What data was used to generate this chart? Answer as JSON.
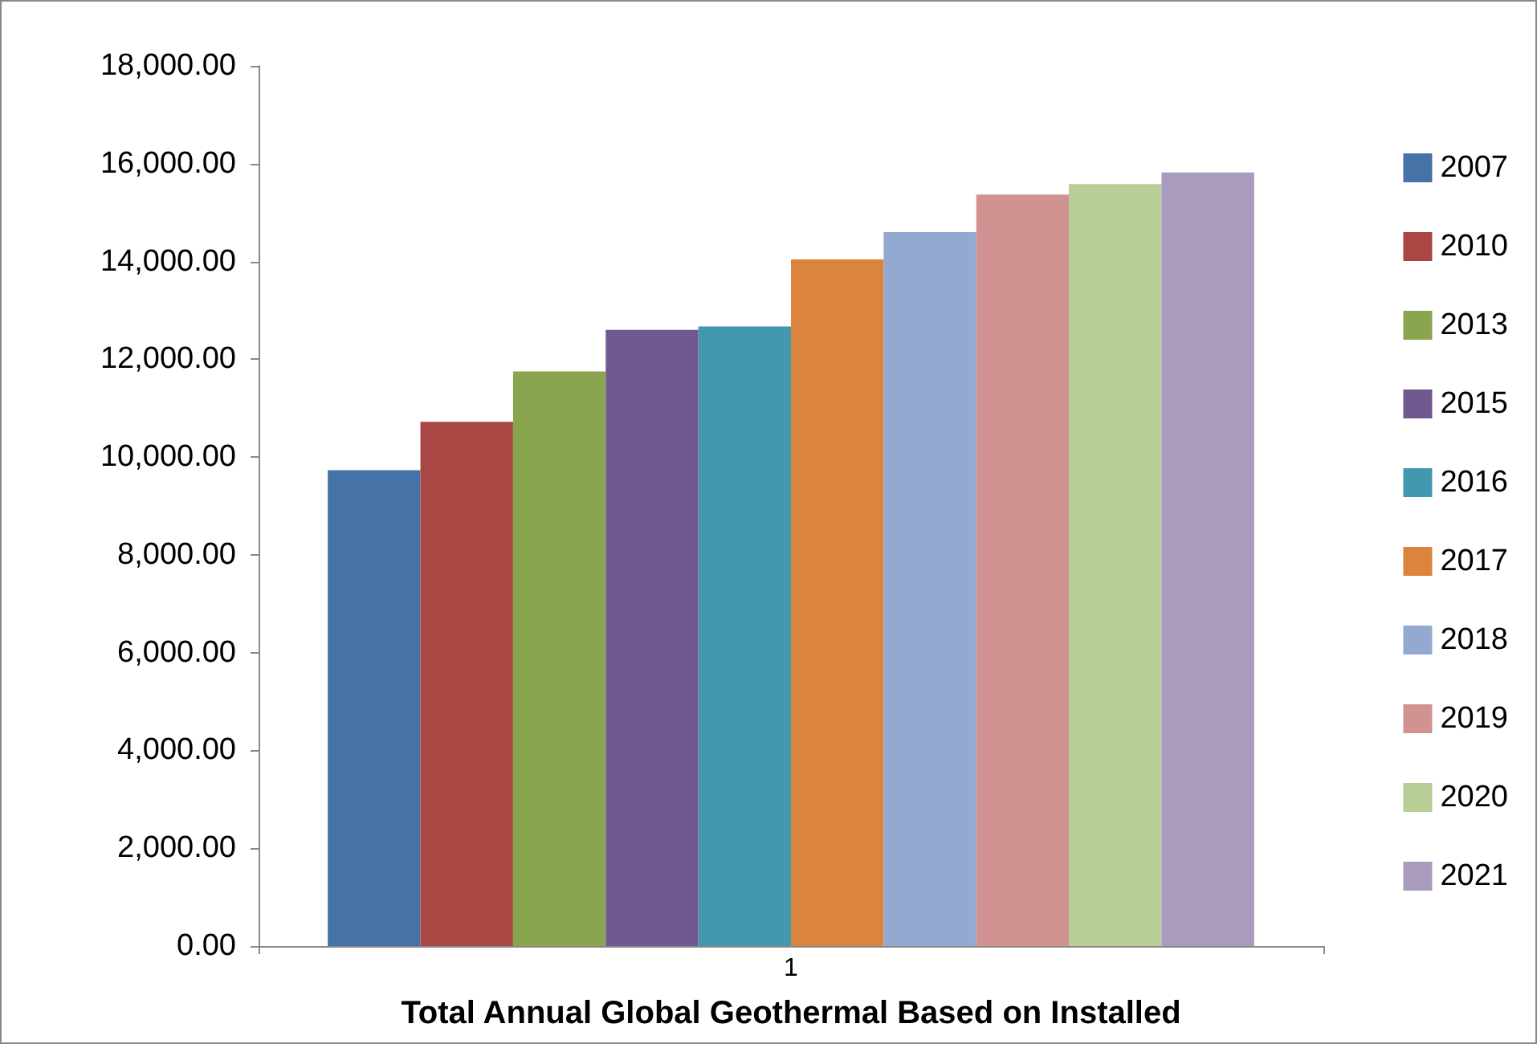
{
  "chart_data": {
    "type": "bar",
    "xlabel": "Total Annual Global Geothermal Based on Installed",
    "categories": [
      "1"
    ],
    "series": [
      {
        "name": "2007",
        "color": "#4572a7",
        "values": [
          9730
        ]
      },
      {
        "name": "2010",
        "color": "#aa4643",
        "values": [
          10720
        ]
      },
      {
        "name": "2013",
        "color": "#89a54e",
        "values": [
          11750
        ]
      },
      {
        "name": "2015",
        "color": "#71588f",
        "values": [
          12600
        ]
      },
      {
        "name": "2016",
        "color": "#4198af",
        "values": [
          12670
        ]
      },
      {
        "name": "2017",
        "color": "#db843d",
        "values": [
          14040
        ]
      },
      {
        "name": "2018",
        "color": "#93a9cf",
        "values": [
          14600
        ]
      },
      {
        "name": "2019",
        "color": "#d19392",
        "values": [
          15370
        ]
      },
      {
        "name": "2020",
        "color": "#b9cd96",
        "values": [
          15580
        ]
      },
      {
        "name": "2021",
        "color": "#a99bbd",
        "values": [
          15820
        ]
      }
    ],
    "ylim": [
      0,
      18000
    ],
    "yticks": [
      {
        "value": 0,
        "label": "0.00"
      },
      {
        "value": 2000,
        "label": "2,000.00"
      },
      {
        "value": 4000,
        "label": "4,000.00"
      },
      {
        "value": 6000,
        "label": "6,000.00"
      },
      {
        "value": 8000,
        "label": "8,000.00"
      },
      {
        "value": 10000,
        "label": "10,000.00"
      },
      {
        "value": 12000,
        "label": "12,000.00"
      },
      {
        "value": 14000,
        "label": "14,000.00"
      },
      {
        "value": 16000,
        "label": "16,000.00"
      },
      {
        "value": 18000,
        "label": "18,000.00"
      }
    ],
    "legend": "right",
    "grid": false
  }
}
